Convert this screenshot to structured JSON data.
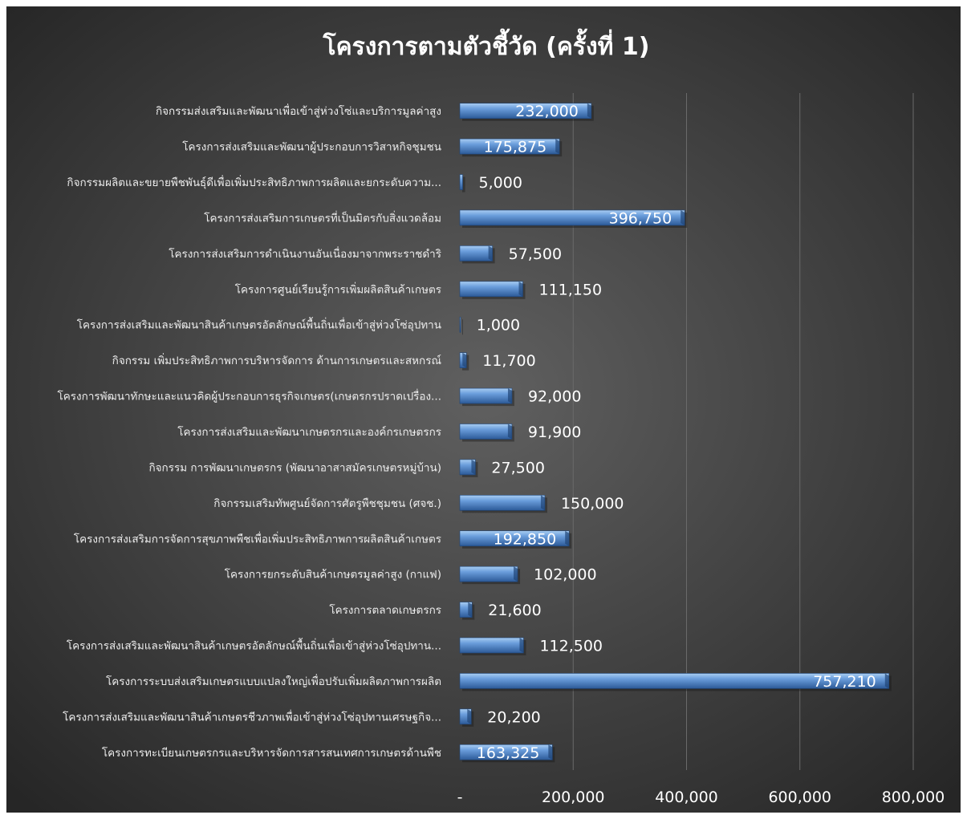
{
  "chart_data": {
    "type": "bar",
    "orientation": "horizontal",
    "title": "โครงการตามตัวชี้วัด (ครั้งที่ 1)",
    "categories": [
      "กิจกรรมส่งเสริมและพัฒนาเพื่อเข้าสู่ห่วงโซ่และบริการมูลค่าสูง",
      "โครงการส่งเสริมและพัฒนาผู้ประกอบการวิสาหกิจชุมชน",
      "กิจกรรมผลิตและขยายพืชพันธุ์ดีเพื่อเพิ่มประสิทธิภาพการผลิตและยกระดับความ...",
      "โครงการส่งเสริมการเกษตรที่เป็นมิตรกับสิ่งแวดล้อม",
      "โครงการส่งเสริมการดำเนินงานอันเนื่องมาจากพระราชดำริ",
      "โครงการศูนย์เรียนรู้การเพิ่มผลิตสินค้าเกษตร",
      "โครงการส่งเสริมและพัฒนาสินค้าเกษตรอัตลักษณ์พื้นถิ่นเพื่อเข้าสู่ห่วงโซ่อุปทาน",
      "กิจกรรม เพิ่มประสิทธิภาพการบริหารจัดการ ด้านการเกษตรและสหกรณ์",
      "โครงการพัฒนาทักษะและแนวคิดผู้ประกอบการธุรกิจเกษตร(เกษตรกรปราดเปรื่อง...",
      "โครงการส่งเสริมและพัฒนาเกษตรกรและองค์กรเกษตรกร",
      "กิจกรรม การพัฒนาเกษตรกร (พัฒนาอาสาสมัครเกษตรหมู่บ้าน)",
      "กิจกรรมเสริมทัพศูนย์จัดการศัตรูพืชชุมชน (ศจช.)",
      "โครงการส่งเสริมการจัดการสุขภาพพืชเพื่อเพิ่มประสิทธิภาพการผลิตสินค้าเกษตร",
      "โครงการยกระดับสินค้าเกษตรมูลค่าสูง (กาแฟ)",
      "โครงการตลาดเกษตรกร",
      "โครงการส่งเสริมและพัฒนาสินค้าเกษตรอัตลักษณ์พื้นถิ่นเพื่อเข้าสู่ห่วงโซ่อุปทาน...",
      "โครงการระบบส่งเสริมเกษตรแบบแปลงใหญ่เพื่อปรับเพิ่มผลิตภาพการผลิต",
      "โครงการส่งเสริมและพัฒนาสินค้าเกษตรชีวภาพเพื่อเข้าสู่ห่วงโซ่อุปทานเศรษฐกิจ...",
      "โครงการทะเบียนเกษตรกรและบริหารจัดการสารสนเทศการเกษตรด้านพืช"
    ],
    "values": [
      232000,
      175875,
      5000,
      396750,
      57500,
      111150,
      1000,
      11700,
      92000,
      91900,
      27500,
      150000,
      192850,
      102000,
      21600,
      112500,
      757210,
      20200,
      163325
    ],
    "data_labels": [
      "232,000",
      "175,875",
      "5,000",
      "396,750",
      "57,500",
      "111,150",
      "1,000",
      "11,700",
      "92,000",
      "91,900",
      "27,500",
      "150,000",
      "192,850",
      "102,000",
      "21,600",
      "112,500",
      "757,210",
      "20,200",
      "163,325"
    ],
    "x_ticks": [
      {
        "value": 0,
        "label": "-"
      },
      {
        "value": 200000,
        "label": "200,000"
      },
      {
        "value": 400000,
        "label": "400,000"
      },
      {
        "value": 600000,
        "label": "600,000"
      },
      {
        "value": 800000,
        "label": "800,000"
      }
    ],
    "xlim": [
      0,
      800000
    ],
    "xlabel": "",
    "ylabel": "",
    "grid": true,
    "legend": "none",
    "colors": {
      "background": "#3a3a3a",
      "background_center": "#5a5a5a",
      "bar": "#5b8fd4",
      "bar_light": "#9cc3ee",
      "bar_dark": "#2f5d9c",
      "text": "#ffffff",
      "category_text": "#ececec",
      "gridline": "#6a6a6a"
    }
  }
}
